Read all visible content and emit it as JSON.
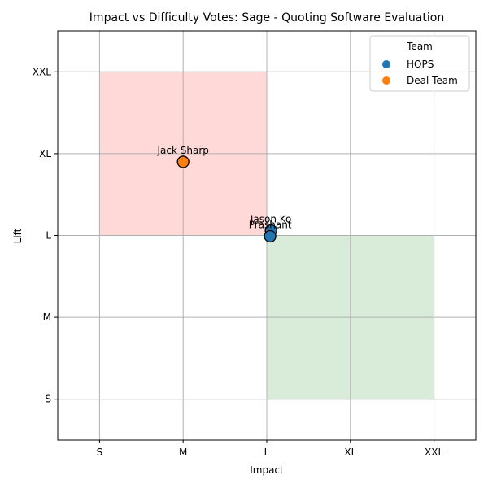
{
  "chart_data": {
    "type": "scatter",
    "title": "Impact vs Difficulty Votes: Sage - Quoting Software Evaluation",
    "xlabel": "Impact",
    "ylabel": "Lift",
    "x_categories": [
      "S",
      "M",
      "L",
      "XL",
      "XXL"
    ],
    "y_categories": [
      "S",
      "M",
      "L",
      "XL",
      "XXL"
    ],
    "xlim": [
      0.5,
      5.5
    ],
    "ylim": [
      0.5,
      5.5
    ],
    "grid": true,
    "regions": [
      {
        "name": "high-lift-low-impact",
        "x": [
          1,
          3
        ],
        "y": [
          3,
          5
        ],
        "color": "#ffd8d8"
      },
      {
        "name": "low-lift-high-impact",
        "x": [
          3,
          5
        ],
        "y": [
          1,
          3
        ],
        "color": "#d9ecd9"
      }
    ],
    "legend": {
      "title": "Team",
      "placement": "top-right",
      "entries": [
        {
          "label": "HOPS",
          "color": "#1f77b4"
        },
        {
          "label": "Deal Team",
          "color": "#ff7f0e"
        }
      ]
    },
    "points": [
      {
        "label": "Jack Sharp",
        "team": "Deal Team",
        "x": 2.0,
        "y": 3.9
      },
      {
        "label": "Jason Ko",
        "team": "HOPS",
        "x": 3.05,
        "y": 3.06
      },
      {
        "label": "Prashant",
        "team": "HOPS",
        "x": 3.04,
        "y": 2.99
      }
    ]
  }
}
